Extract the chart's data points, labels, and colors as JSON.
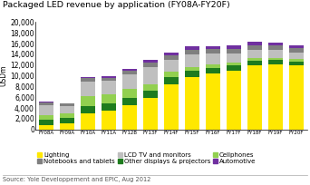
{
  "title": "Packaged LED revenue by application (FY08A-FY20F)",
  "ylabel": "USDm",
  "source": "Source: Yole Developpement and EPIC, Aug 2012",
  "categories": [
    "FY08A",
    "FY09A",
    "FY10A",
    "FY11A",
    "FY12B",
    "FY13F",
    "FY14F",
    "FY15F",
    "FY16F",
    "FY17F",
    "FY18F",
    "FY19F",
    "FY20F"
  ],
  "series": {
    "Lighting": [
      800,
      1100,
      3000,
      3500,
      4500,
      5800,
      8500,
      9800,
      10500,
      11000,
      12000,
      12200,
      12000
    ],
    "Notebooks and tablets": [
      500,
      400,
      550,
      550,
      650,
      750,
      850,
      850,
      850,
      850,
      850,
      850,
      750
    ],
    "LCD TV and monitors": [
      1800,
      1400,
      2800,
      2600,
      2800,
      3200,
      2300,
      2300,
      1900,
      1700,
      1500,
      1400,
      1300
    ],
    "Other displays & projectors": [
      1000,
      1000,
      1400,
      1400,
      1400,
      1400,
      1200,
      1100,
      1000,
      900,
      800,
      700,
      650
    ],
    "Cellphones": [
      900,
      900,
      1800,
      1600,
      1600,
      1300,
      1000,
      800,
      700,
      600,
      550,
      500,
      450
    ],
    "Automotive": [
      150,
      150,
      250,
      300,
      350,
      450,
      550,
      600,
      600,
      600,
      600,
      600,
      600
    ]
  },
  "colors": {
    "Lighting": "#FFE800",
    "Notebooks and tablets": "#7F7F7F",
    "LCD TV and monitors": "#BFBFBF",
    "Other displays & projectors": "#1E7B1E",
    "Cellphones": "#92D050",
    "Automotive": "#7030A0"
  },
  "ylim": [
    0,
    20000
  ],
  "yticks": [
    0,
    2000,
    4000,
    6000,
    8000,
    10000,
    12000,
    14000,
    16000,
    18000,
    20000
  ],
  "background_color": "#FFFFFF",
  "title_fontsize": 6.8,
  "axis_fontsize": 5.5,
  "legend_fontsize": 5.0,
  "source_fontsize": 4.8,
  "bar_width": 0.7
}
